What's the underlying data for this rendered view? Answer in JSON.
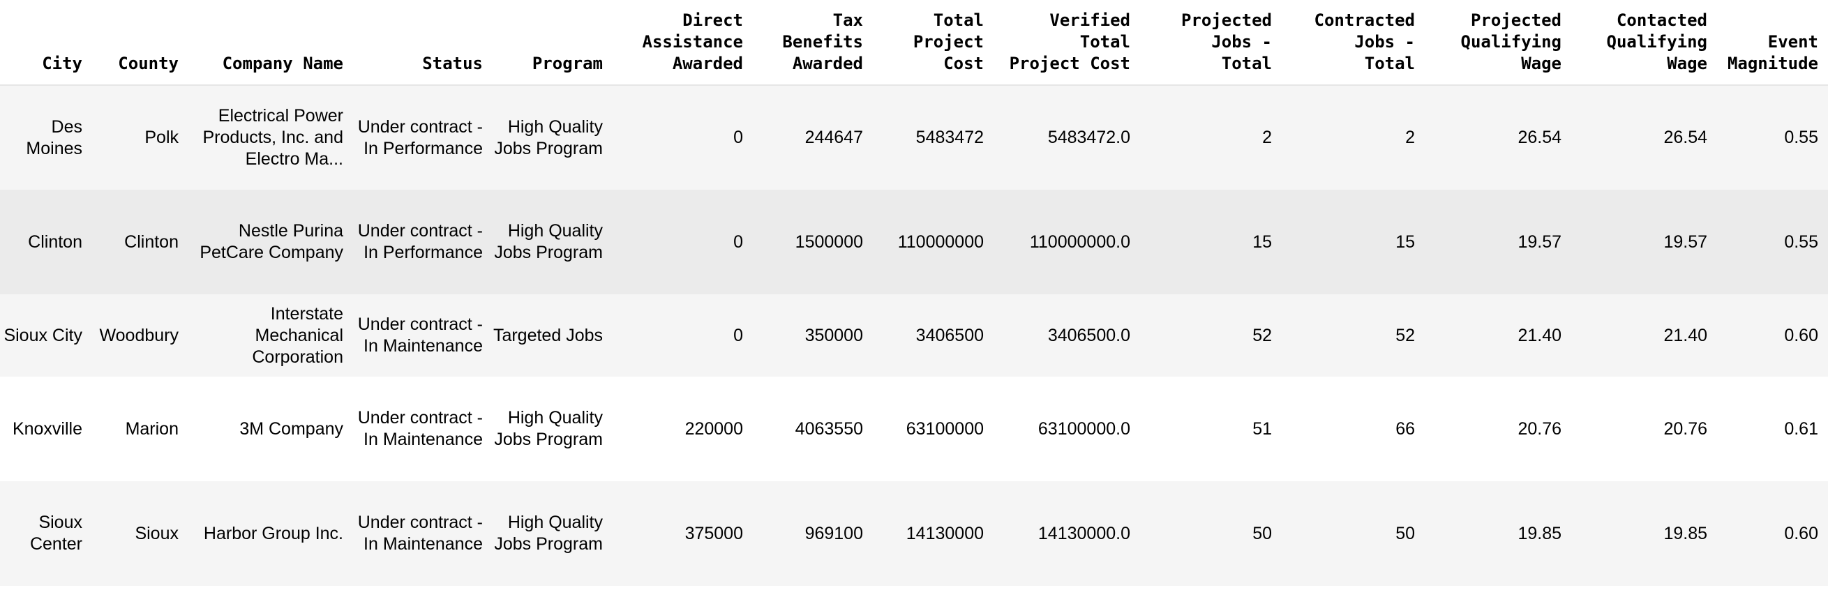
{
  "table": {
    "columns": [
      "City",
      "County",
      "Company Name",
      "Status",
      "Program",
      "Direct\nAssistance\nAwarded",
      "Tax\nBenefits\nAwarded",
      "Total\nProject\nCost",
      "Verified\nTotal\nProject Cost",
      "Projected\nJobs -\nTotal",
      "Contracted\nJobs -\nTotal",
      "Projected\nQualifying\nWage",
      "Contacted\nQualifying\nWage",
      "Event\nMagnitude"
    ],
    "rows": [
      [
        "Des Moines",
        "Polk",
        "Electrical Power Products, Inc. and Electro Ma...",
        "Under contract - In Performance",
        "High Quality Jobs Program",
        "0",
        "244647",
        "5483472",
        "5483472.0",
        "2",
        "2",
        "26.54",
        "26.54",
        "0.55"
      ],
      [
        "Clinton",
        "Clinton",
        "Nestle Purina PetCare Company",
        "Under contract - In Performance",
        "High Quality Jobs Program",
        "0",
        "1500000",
        "110000000",
        "110000000.0",
        "15",
        "15",
        "19.57",
        "19.57",
        "0.55"
      ],
      [
        "Sioux City",
        "Woodbury",
        "Interstate Mechanical Corporation",
        "Under contract - In Maintenance",
        "Targeted Jobs",
        "0",
        "350000",
        "3406500",
        "3406500.0",
        "52",
        "52",
        "21.40",
        "21.40",
        "0.60"
      ],
      [
        "Knoxville",
        "Marion",
        "3M Company",
        "Under contract - In Maintenance",
        "High Quality Jobs Program",
        "220000",
        "4063550",
        "63100000",
        "63100000.0",
        "51",
        "66",
        "20.76",
        "20.76",
        "0.61"
      ],
      [
        "Sioux Center",
        "Sioux",
        "Harbor Group Inc.",
        "Under contract - In Maintenance",
        "High Quality Jobs Program",
        "375000",
        "969100",
        "14130000",
        "14130000.0",
        "50",
        "50",
        "19.85",
        "19.85",
        "0.60"
      ]
    ]
  }
}
